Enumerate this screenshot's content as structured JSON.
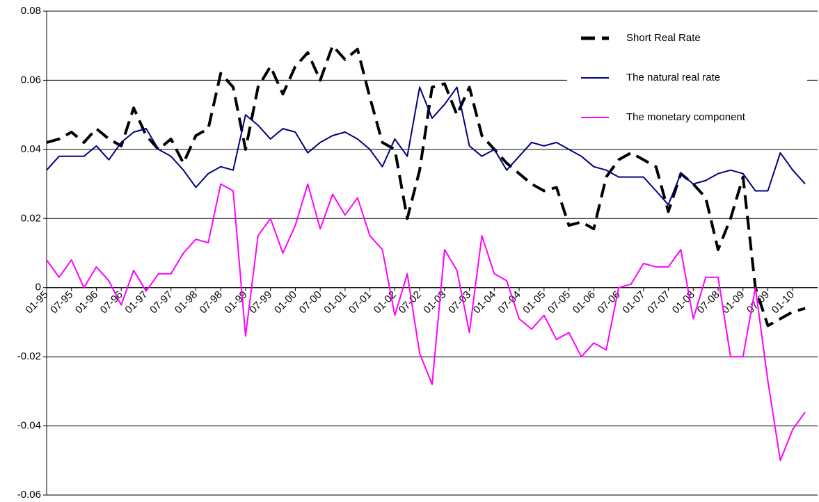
{
  "chart_data": {
    "type": "line",
    "categories": [
      "01-95",
      null,
      "07-95",
      null,
      "01-96",
      null,
      "07-96",
      null,
      "01-97",
      null,
      "07-97",
      null,
      "01-98",
      null,
      "07-98",
      null,
      "01-99",
      null,
      "07-99",
      null,
      "01-00",
      null,
      "07-00",
      null,
      "01-01",
      null,
      "07-01",
      null,
      "01-02",
      null,
      "07-02",
      null,
      "01-03",
      null,
      "07-03",
      null,
      "01-04",
      null,
      "07-04",
      null,
      "01-05",
      null,
      "07-05",
      null,
      "01-06",
      null,
      "07-06",
      null,
      "01-07",
      null,
      "07-07",
      null,
      "01-08",
      null,
      "07-08",
      null,
      "01-09",
      null,
      "07-09",
      null,
      "01-10",
      null
    ],
    "series": [
      {
        "name": "Short Real Rate",
        "color": "#000000",
        "dashed": true,
        "values": [
          0.042,
          0.043,
          0.045,
          0.042,
          0.046,
          0.043,
          0.041,
          0.052,
          0.044,
          0.04,
          0.043,
          0.036,
          0.044,
          0.046,
          0.062,
          0.058,
          0.04,
          0.058,
          0.064,
          0.056,
          0.064,
          0.068,
          0.06,
          0.07,
          0.066,
          0.069,
          0.055,
          0.042,
          0.04,
          0.02,
          0.034,
          0.058,
          0.059,
          0.05,
          0.058,
          0.044,
          0.04,
          0.036,
          0.033,
          0.03,
          0.028,
          0.029,
          0.018,
          0.019,
          0.017,
          0.032,
          0.037,
          0.039,
          0.037,
          0.035,
          0.022,
          0.033,
          0.03,
          0.026,
          0.011,
          0.02,
          0.032,
          0.0,
          -0.011,
          -0.009,
          -0.007,
          -0.006
        ]
      },
      {
        "name": "The natural real rate",
        "color": "#000080",
        "dashed": false,
        "values": [
          0.034,
          0.038,
          0.038,
          0.038,
          0.041,
          0.037,
          0.042,
          0.045,
          0.046,
          0.04,
          0.038,
          0.034,
          0.029,
          0.033,
          0.035,
          0.034,
          0.05,
          0.047,
          0.043,
          0.046,
          0.045,
          0.039,
          0.042,
          0.044,
          0.045,
          0.043,
          0.04,
          0.035,
          0.043,
          0.038,
          0.058,
          0.049,
          0.053,
          0.058,
          0.041,
          0.038,
          0.04,
          0.034,
          0.038,
          0.042,
          0.041,
          0.042,
          0.04,
          0.038,
          0.035,
          0.034,
          0.032,
          0.032,
          0.032,
          0.028,
          0.024,
          0.033,
          0.03,
          0.031,
          0.033,
          0.034,
          0.033,
          0.028,
          0.028,
          0.039,
          0.034,
          0.03
        ]
      },
      {
        "name": "The monetary component",
        "color": "#ff00ff",
        "dashed": false,
        "values": [
          0.008,
          0.003,
          0.008,
          0.0,
          0.006,
          0.002,
          -0.005,
          0.005,
          -0.001,
          0.004,
          0.004,
          0.01,
          0.014,
          0.013,
          0.03,
          0.028,
          -0.014,
          0.015,
          0.02,
          0.01,
          0.018,
          0.03,
          0.017,
          0.027,
          0.021,
          0.026,
          0.015,
          0.011,
          -0.008,
          0.004,
          -0.019,
          -0.028,
          0.011,
          0.005,
          -0.013,
          0.015,
          0.004,
          0.002,
          -0.009,
          -0.012,
          -0.008,
          -0.015,
          -0.013,
          -0.02,
          -0.016,
          -0.018,
          0.0,
          0.001,
          0.007,
          0.006,
          0.006,
          0.011,
          -0.009,
          0.003,
          0.003,
          -0.02,
          -0.02,
          0.0,
          -0.027,
          -0.05,
          -0.041,
          -0.036
        ]
      }
    ],
    "ylim": [
      -0.06,
      0.08
    ],
    "yticks": [
      -0.06,
      -0.04,
      -0.02,
      0,
      0.02,
      0.04,
      0.06,
      0.08
    ],
    "grid": true,
    "legend": "upper right"
  }
}
